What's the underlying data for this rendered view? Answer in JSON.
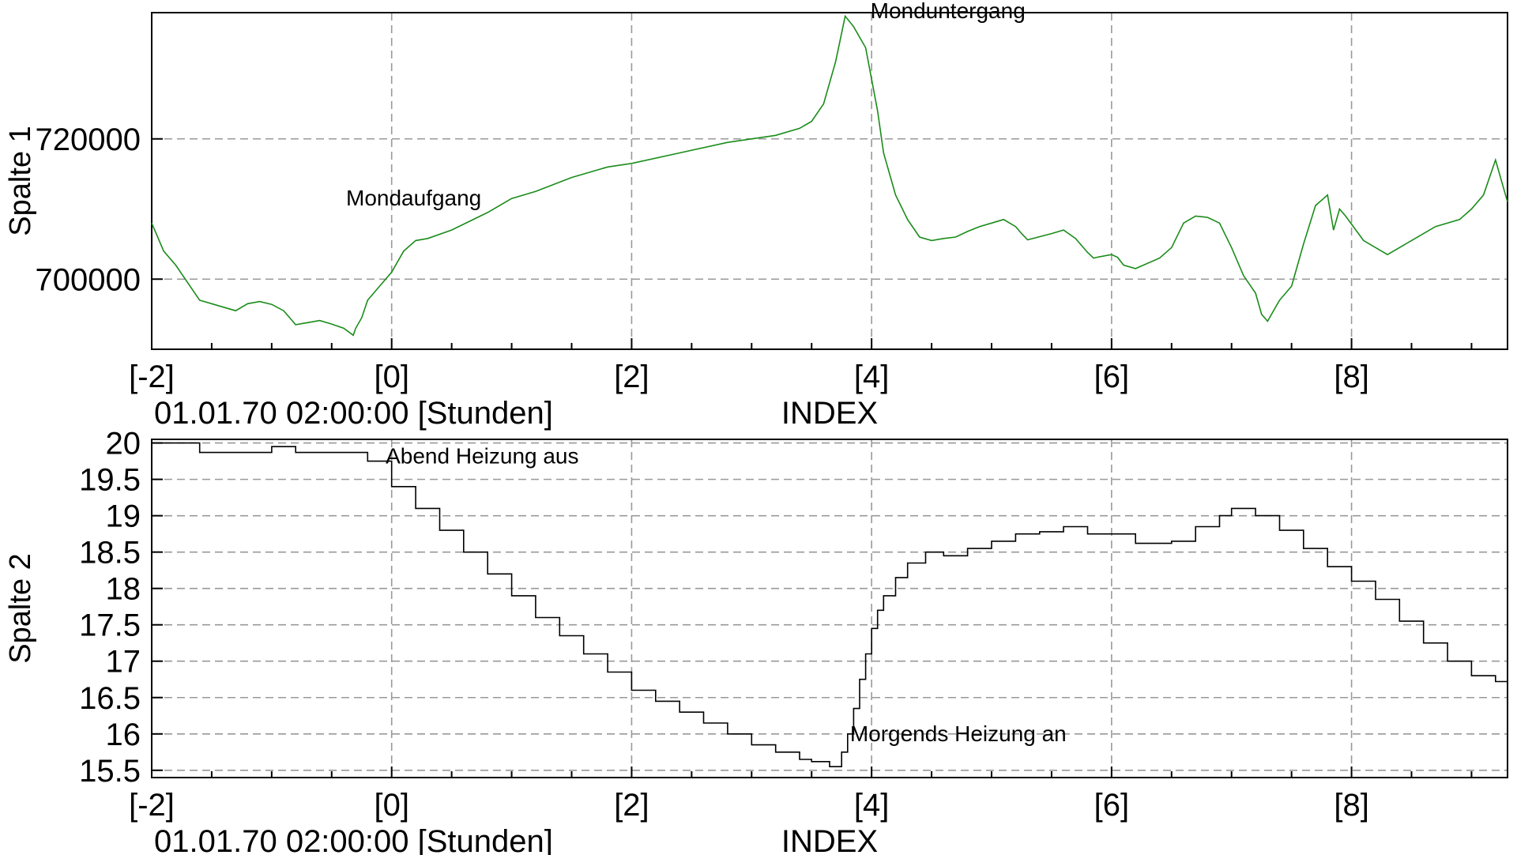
{
  "chart_data": [
    {
      "type": "line",
      "ylabel": "Spalte 1",
      "x_unit_label": "01.01.70 02:00:00 [Stunden]",
      "xlabel": "INDEX",
      "xlim": [
        -2,
        9.3
      ],
      "ylim": [
        690000,
        738000
      ],
      "x_ticks": [
        -2,
        0,
        2,
        4,
        6,
        8
      ],
      "x_tick_labels": [
        "[-2]",
        "[0]",
        "[2]",
        "[4]",
        "[6]",
        "[8]"
      ],
      "y_ticks": [
        700000,
        720000
      ],
      "y_tick_labels": [
        "700000",
        "720000"
      ],
      "grid": true,
      "series": [
        {
          "color": "#1a8c1a",
          "x": [
            -2.0,
            -1.9,
            -1.8,
            -1.6,
            -1.4,
            -1.3,
            -1.2,
            -1.1,
            -1.0,
            -0.9,
            -0.8,
            -0.7,
            -0.6,
            -0.5,
            -0.4,
            -0.32,
            -0.3,
            -0.25,
            -0.2,
            -0.1,
            0.0,
            0.1,
            0.2,
            0.3,
            0.5,
            0.8,
            1.0,
            1.2,
            1.5,
            1.8,
            2.0,
            2.4,
            2.8,
            3.2,
            3.4,
            3.5,
            3.6,
            3.7,
            3.78,
            3.85,
            3.95,
            4.05,
            4.1,
            4.2,
            4.3,
            4.4,
            4.5,
            4.6,
            4.7,
            4.8,
            4.9,
            5.0,
            5.1,
            5.2,
            5.25,
            5.3,
            5.5,
            5.6,
            5.7,
            5.8,
            5.85,
            5.9,
            6.0,
            6.05,
            6.1,
            6.2,
            6.4,
            6.5,
            6.6,
            6.7,
            6.8,
            6.9,
            7.0,
            7.1,
            7.2,
            7.25,
            7.3,
            7.4,
            7.5,
            7.6,
            7.7,
            7.8,
            7.85,
            7.9,
            7.95,
            8.1,
            8.3,
            8.5,
            8.7,
            8.9,
            9.0,
            9.1,
            9.2,
            9.3
          ],
          "y": [
            708000,
            704000,
            702000,
            697000,
            696000,
            695500,
            696500,
            696800,
            696400,
            695500,
            693500,
            693800,
            694100,
            693600,
            693000,
            692000,
            693000,
            694500,
            697000,
            699000,
            701000,
            704000,
            705500,
            705800,
            707000,
            709500,
            711500,
            712500,
            714500,
            716000,
            716500,
            718000,
            719500,
            720500,
            721500,
            722500,
            725000,
            731000,
            737500,
            736000,
            733000,
            724000,
            718000,
            712000,
            708500,
            706000,
            705500,
            705800,
            706000,
            706800,
            707500,
            708000,
            708500,
            707500,
            706500,
            705600,
            706500,
            707000,
            705800,
            703800,
            703000,
            703200,
            703500,
            703100,
            702000,
            701500,
            703000,
            704500,
            708000,
            709000,
            708800,
            708000,
            704500,
            700500,
            698000,
            695000,
            694000,
            697000,
            699000,
            705000,
            710500,
            712000,
            707000,
            710000,
            709000,
            705500,
            703500,
            705500,
            707500,
            708500,
            710000,
            712000,
            717000,
            711000
          ]
        }
      ],
      "annotations": [
        "Mondaufgang",
        "Monduntergang"
      ]
    },
    {
      "type": "line",
      "ylabel": "Spalte 2",
      "x_unit_label": "01.01.70 02:00:00 [Stunden]",
      "xlabel": "INDEX",
      "xlim": [
        -2,
        9.3
      ],
      "ylim": [
        15.4,
        20.05
      ],
      "x_ticks": [
        -2,
        0,
        2,
        4,
        6,
        8
      ],
      "x_tick_labels": [
        "[-2]",
        "[0]",
        "[2]",
        "[4]",
        "[6]",
        "[8]"
      ],
      "y_ticks": [
        15.5,
        16,
        16.5,
        17,
        17.5,
        18,
        18.5,
        19,
        19.5,
        20
      ],
      "y_tick_labels": [
        "15.5",
        "16",
        "16.5",
        "17",
        "17.5",
        "18",
        "18.5",
        "19",
        "19.5",
        "20"
      ],
      "grid": true,
      "series": [
        {
          "color": "#000000",
          "step": true,
          "x": [
            -2.0,
            -1.8,
            -1.6,
            -1.2,
            -1.0,
            -0.8,
            -0.5,
            -0.2,
            0.0,
            0.2,
            0.4,
            0.6,
            0.8,
            1.0,
            1.2,
            1.4,
            1.6,
            1.8,
            2.0,
            2.2,
            2.4,
            2.6,
            2.8,
            3.0,
            3.2,
            3.4,
            3.5,
            3.65,
            3.75,
            3.8,
            3.85,
            3.9,
            3.95,
            4.0,
            4.05,
            4.1,
            4.2,
            4.3,
            4.45,
            4.6,
            4.8,
            5.0,
            5.2,
            5.4,
            5.6,
            5.8,
            6.2,
            6.5,
            6.7,
            6.9,
            7.0,
            7.2,
            7.4,
            7.6,
            7.8,
            8.0,
            8.2,
            8.4,
            8.6,
            8.8,
            9.0,
            9.2,
            9.3
          ],
          "y": [
            20.0,
            20.0,
            19.87,
            19.87,
            19.95,
            19.87,
            19.87,
            19.75,
            19.4,
            19.1,
            18.8,
            18.5,
            18.2,
            17.9,
            17.6,
            17.35,
            17.1,
            16.85,
            16.6,
            16.45,
            16.3,
            16.15,
            16.0,
            15.85,
            15.75,
            15.65,
            15.62,
            15.55,
            15.75,
            16.0,
            16.35,
            16.75,
            17.1,
            17.45,
            17.7,
            17.9,
            18.15,
            18.35,
            18.5,
            18.45,
            18.55,
            18.65,
            18.75,
            18.78,
            18.85,
            18.75,
            18.62,
            18.65,
            18.85,
            19.0,
            19.1,
            19.0,
            18.8,
            18.55,
            18.3,
            18.1,
            17.85,
            17.55,
            17.25,
            17.0,
            16.8,
            16.72,
            16.6
          ]
        }
      ],
      "annotations": [
        "Abend Heizung aus",
        "Morgends Heizung an"
      ]
    }
  ]
}
